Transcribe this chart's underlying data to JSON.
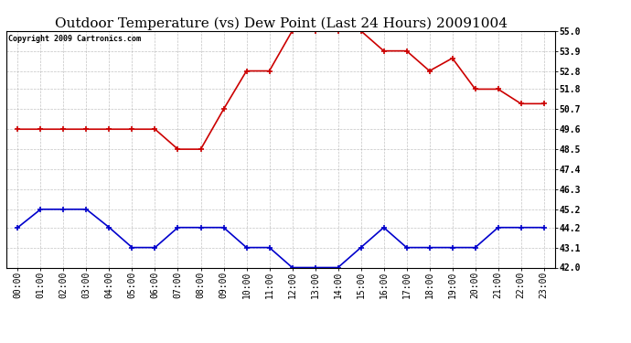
{
  "title": "Outdoor Temperature (vs) Dew Point (Last 24 Hours) 20091004",
  "copyright": "Copyright 2009 Cartronics.com",
  "x_labels": [
    "00:00",
    "01:00",
    "02:00",
    "03:00",
    "04:00",
    "05:00",
    "06:00",
    "07:00",
    "08:00",
    "09:00",
    "10:00",
    "11:00",
    "12:00",
    "13:00",
    "14:00",
    "15:00",
    "16:00",
    "17:00",
    "18:00",
    "19:00",
    "20:00",
    "21:00",
    "22:00",
    "23:00"
  ],
  "temp_red": [
    49.6,
    49.6,
    49.6,
    49.6,
    49.6,
    49.6,
    49.6,
    48.5,
    48.5,
    50.7,
    52.8,
    52.8,
    55.0,
    55.0,
    55.0,
    55.0,
    53.9,
    53.9,
    52.8,
    53.5,
    51.8,
    51.8,
    51.0,
    51.0
  ],
  "dew_blue": [
    44.2,
    45.2,
    45.2,
    45.2,
    44.2,
    43.1,
    43.1,
    44.2,
    44.2,
    44.2,
    43.1,
    43.1,
    42.0,
    42.0,
    42.0,
    43.1,
    44.2,
    43.1,
    43.1,
    43.1,
    43.1,
    44.2,
    44.2,
    44.2
  ],
  "ylim": [
    42.0,
    55.0
  ],
  "yticks": [
    42.0,
    43.1,
    44.2,
    45.2,
    46.3,
    47.4,
    48.5,
    49.6,
    50.7,
    51.8,
    52.8,
    53.9,
    55.0
  ],
  "red_color": "#cc0000",
  "blue_color": "#0000cc",
  "grid_color": "#aaaaaa",
  "bg_color": "#ffffff",
  "title_fontsize": 11,
  "copyright_fontsize": 6,
  "tick_fontsize": 7,
  "ytick_fontsize": 7
}
